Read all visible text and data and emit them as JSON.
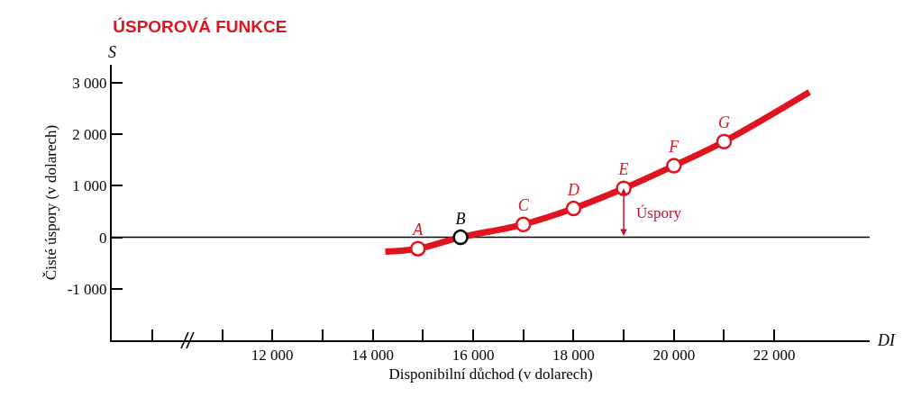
{
  "chart_data": {
    "type": "line",
    "title": "ÚSPOROVÁ FUNKCE",
    "xlabel": "Disponibilní důchod (v dolarech)",
    "ylabel": "Čisté úspory (v dolarech)",
    "annotations": [
      "S",
      "DI",
      {
        "text": "Úspory",
        "x": 19000,
        "y": 950
      }
    ],
    "series": [
      {
        "color": "#e0141e",
        "x": [
          14250,
          14900,
          15750,
          17000,
          18000,
          19000,
          20000,
          21000,
          22700
        ],
        "values": [
          -280,
          -220,
          0,
          250,
          560,
          950,
          1390,
          1860,
          2820
        ]
      },
      {
        "type": "scatter",
        "marker": "circle",
        "colors": [
          "#e0141e",
          "#000000",
          "#e0141e",
          "#e0141e",
          "#e0141e",
          "#e0141e",
          "#e0141e"
        ],
        "x": [
          14900,
          15750,
          17000,
          18000,
          19000,
          20000,
          21000
        ],
        "values": [
          -220,
          0,
          250,
          560,
          950,
          1390,
          1860
        ],
        "value_labels": [
          "A",
          "B",
          "C",
          "D",
          "E",
          "F",
          "G"
        ]
      }
    ],
    "xlim": [
      8800,
      23900
    ],
    "ylim": [
      -2000,
      3350
    ],
    "xticks": [
      {
        "value": 9600,
        "label": null
      },
      {
        "value": 11000,
        "label": null
      },
      {
        "value": 12000,
        "label": "12 000"
      },
      {
        "value": 13000,
        "label": null
      },
      {
        "value": 14000,
        "label": "14 000"
      },
      {
        "value": 15000,
        "label": null
      },
      {
        "value": 16000,
        "label": "16 000"
      },
      {
        "value": 17000,
        "label": null
      },
      {
        "value": 18000,
        "label": "18 000"
      },
      {
        "value": 19000,
        "label": null
      },
      {
        "value": 20000,
        "label": "20 000"
      },
      {
        "value": 21000,
        "label": null
      },
      {
        "value": 22000,
        "label": "22 000"
      }
    ],
    "yticks": [
      {
        "value": 3000,
        "label": "3 000"
      },
      {
        "value": 2000,
        "label": "2 000"
      },
      {
        "value": 1000,
        "label": "1 000"
      },
      0,
      {
        "value": -1000,
        "label": "-1 000"
      }
    ],
    "ref_lines": [
      {
        "axis": "y",
        "value": 0,
        "color": "#000000"
      }
    ],
    "grid": false,
    "legend": false
  }
}
